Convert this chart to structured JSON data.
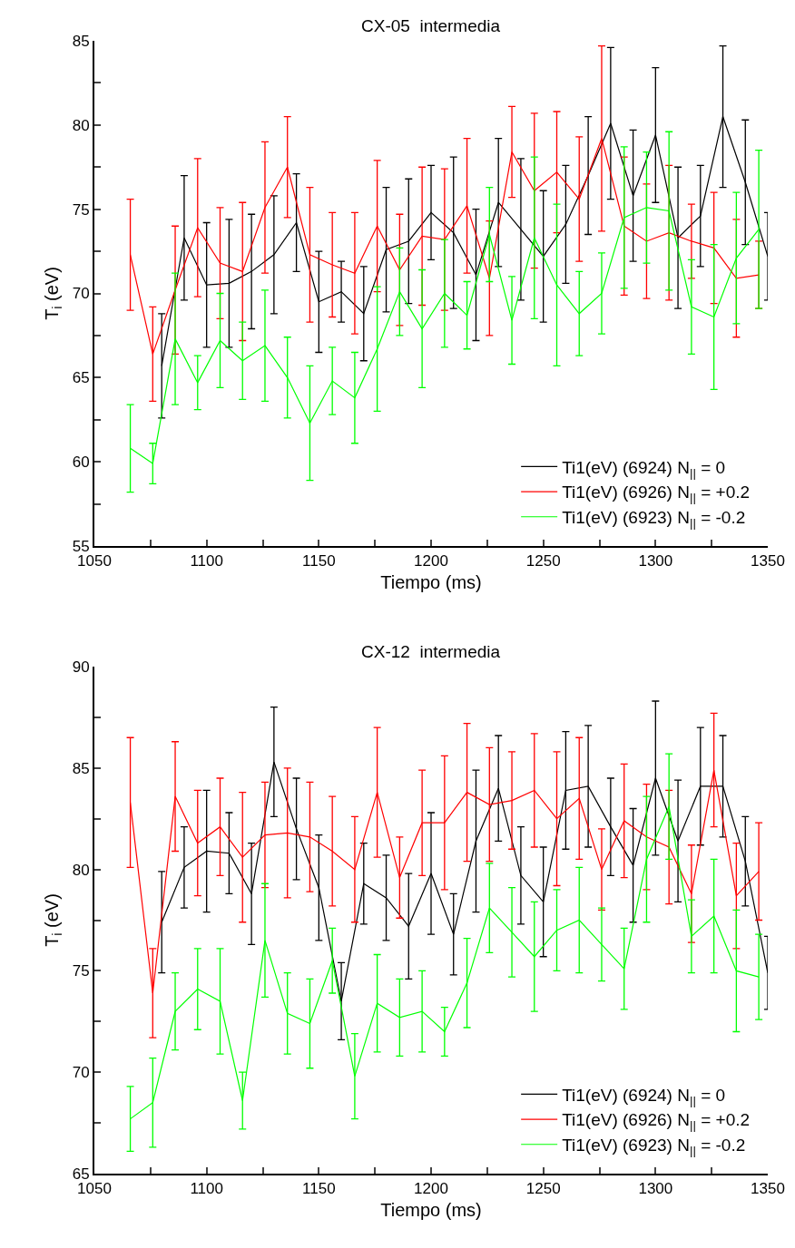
{
  "chart_data": [
    {
      "type": "line",
      "title": "CX-05  intermedia",
      "xlabel": "Tiempo (ms)",
      "ylabel": "T$_{i}$ (eV)",
      "legend": "bottom right",
      "xlim": [
        1050,
        1350
      ],
      "xticks": [
        1050,
        {
          "value": 1075,
          "label": null
        },
        1100,
        {
          "value": 1125,
          "label": null
        },
        1150,
        {
          "value": 1175,
          "label": null
        },
        1200,
        {
          "value": 1225,
          "label": null
        },
        1250,
        {
          "value": 1275,
          "label": null
        },
        1300,
        {
          "value": 1325,
          "label": null
        },
        1350
      ],
      "ylim": [
        55,
        85
      ],
      "yticks": [
        55,
        {
          "value": 57.5,
          "label": null
        },
        60,
        {
          "value": 62.5,
          "label": null
        },
        65,
        {
          "value": 67.5,
          "label": null
        },
        70,
        {
          "value": 72.5,
          "label": null
        },
        75,
        {
          "value": 77.5,
          "label": null
        },
        80,
        {
          "value": 82.5,
          "label": null
        },
        85
      ],
      "series": [
        {
          "name": "Ti1(eV) (6924) N$_{||}$ = 0",
          "color": "#000000",
          "x": [
            1080,
            1090,
            1100,
            1110,
            1120,
            1130,
            1140,
            1150,
            1160,
            1170,
            1180,
            1190,
            1200,
            1210,
            1220,
            1230,
            1240,
            1250,
            1260,
            1270,
            1280,
            1290,
            1300,
            1310,
            1320,
            1330,
            1340,
            1350
          ],
          "values": [
            65.7,
            73.3,
            70.5,
            70.6,
            71.3,
            72.3,
            74.2,
            69.5,
            70.1,
            68.8,
            72.6,
            73.1,
            74.8,
            73.6,
            71.1,
            75.4,
            73.8,
            72.2,
            74.1,
            77.0,
            80.1,
            75.8,
            79.4,
            73.3,
            74.6,
            80.5,
            76.6,
            72.2
          ],
          "errors": [
            3.1,
            3.7,
            3.7,
            3.8,
            3.4,
            3.5,
            2.9,
            3.0,
            1.8,
            2.8,
            3.7,
            3.7,
            2.8,
            4.5,
            3.9,
            3.8,
            4.2,
            3.9,
            3.5,
            3.5,
            4.5,
            3.9,
            4.0,
            4.2,
            3.0,
            4.2,
            3.7,
            2.6
          ]
        },
        {
          "name": "Ti1(eV) (6926) N$_{||}$ = +0.2",
          "color": "#ff0000",
          "x": [
            1066,
            1076,
            1086,
            1096,
            1106,
            1116,
            1126,
            1136,
            1146,
            1156,
            1166,
            1176,
            1186,
            1196,
            1206,
            1216,
            1226,
            1236,
            1246,
            1256,
            1266,
            1276,
            1286,
            1296,
            1306,
            1316,
            1326,
            1336,
            1346
          ],
          "values": [
            72.3,
            66.4,
            70.2,
            73.9,
            71.8,
            71.3,
            75.1,
            77.5,
            72.3,
            71.7,
            71.2,
            74.0,
            71.4,
            73.4,
            73.2,
            75.2,
            70.9,
            78.4,
            76.1,
            77.2,
            75.6,
            79.2,
            74.0,
            73.1,
            73.6,
            73.1,
            72.7,
            70.9,
            71.1
          ],
          "errors": [
            3.3,
            2.8,
            3.8,
            4.1,
            3.3,
            4.1,
            3.9,
            3.0,
            4.0,
            3.1,
            3.6,
            3.9,
            3.3,
            4.1,
            4.2,
            4.0,
            3.4,
            2.7,
            4.6,
            3.6,
            3.7,
            5.5,
            4.1,
            3.4,
            4.0,
            2.2,
            3.3,
            3.5,
            2.0
          ]
        },
        {
          "name": "Ti1(eV) (6923) N$_{||}$ = -0.2",
          "color": "#00ff00",
          "x": [
            1066,
            1076,
            1086,
            1096,
            1106,
            1116,
            1126,
            1136,
            1146,
            1156,
            1166,
            1176,
            1186,
            1196,
            1206,
            1216,
            1226,
            1236,
            1246,
            1256,
            1266,
            1276,
            1286,
            1296,
            1306,
            1316,
            1326,
            1336,
            1346
          ],
          "values": [
            60.8,
            59.9,
            67.3,
            64.7,
            67.2,
            66.0,
            66.9,
            65.0,
            62.3,
            64.8,
            63.8,
            66.7,
            70.1,
            67.9,
            70.0,
            68.7,
            73.5,
            68.4,
            73.3,
            70.5,
            68.8,
            70.0,
            74.5,
            75.1,
            74.9,
            69.2,
            68.6,
            72.1,
            73.8
          ],
          "errors": [
            2.6,
            1.2,
            3.9,
            1.6,
            2.8,
            2.3,
            3.3,
            2.4,
            3.4,
            2.0,
            2.7,
            3.7,
            2.6,
            3.5,
            3.2,
            2.0,
            2.8,
            2.6,
            4.8,
            4.8,
            2.5,
            2.4,
            4.2,
            3.3,
            4.7,
            2.8,
            4.3,
            3.9,
            4.7
          ]
        }
      ]
    },
    {
      "type": "line",
      "title": "CX-12  intermedia",
      "xlabel": "Tiempo (ms)",
      "ylabel": "T$_{i}$ (eV)",
      "legend": "bottom right",
      "xlim": [
        1050,
        1350
      ],
      "xticks": [
        1050,
        {
          "value": 1075,
          "label": null
        },
        1100,
        {
          "value": 1125,
          "label": null
        },
        1150,
        {
          "value": 1175,
          "label": null
        },
        1200,
        {
          "value": 1225,
          "label": null
        },
        1250,
        {
          "value": 1275,
          "label": null
        },
        1300,
        {
          "value": 1325,
          "label": null
        },
        1350
      ],
      "ylim": [
        65,
        90
      ],
      "yticks": [
        65,
        {
          "value": 67.5,
          "label": null
        },
        70,
        {
          "value": 72.5,
          "label": null
        },
        75,
        {
          "value": 77.5,
          "label": null
        },
        80,
        {
          "value": 82.5,
          "label": null
        },
        85,
        {
          "value": 87.5,
          "label": null
        },
        90
      ],
      "series": [
        {
          "name": "Ti1(eV) (6924) N$_{||}$ = 0",
          "color": "#000000",
          "x": [
            1080,
            1090,
            1100,
            1110,
            1120,
            1130,
            1140,
            1150,
            1160,
            1170,
            1180,
            1190,
            1200,
            1210,
            1220,
            1230,
            1240,
            1250,
            1260,
            1270,
            1280,
            1290,
            1300,
            1310,
            1320,
            1330,
            1340,
            1350
          ],
          "values": [
            77.4,
            80.1,
            80.9,
            80.8,
            78.8,
            85.3,
            82.0,
            79.1,
            73.5,
            79.3,
            78.6,
            77.2,
            79.8,
            76.8,
            81.4,
            84.0,
            79.7,
            78.4,
            83.9,
            84.1,
            82.1,
            80.2,
            84.5,
            81.4,
            84.1,
            84.1,
            80.4,
            74.9
          ],
          "errors": [
            2.5,
            2.0,
            3.0,
            2.0,
            2.5,
            2.7,
            2.5,
            2.6,
            1.9,
            2.0,
            2.1,
            2.6,
            3.0,
            2.0,
            3.5,
            2.6,
            2.4,
            2.7,
            2.9,
            3.0,
            2.4,
            2.8,
            3.8,
            3.0,
            2.9,
            2.5,
            2.2,
            1.8
          ]
        },
        {
          "name": "Ti1(eV) (6926) N$_{||}$ = +0.2",
          "color": "#ff0000",
          "x": [
            1066,
            1076,
            1086,
            1096,
            1106,
            1116,
            1126,
            1136,
            1146,
            1156,
            1166,
            1176,
            1186,
            1196,
            1206,
            1216,
            1226,
            1236,
            1246,
            1256,
            1266,
            1276,
            1286,
            1296,
            1306,
            1316,
            1326,
            1336,
            1346
          ],
          "values": [
            83.3,
            73.9,
            83.6,
            81.3,
            82.1,
            80.6,
            81.7,
            81.8,
            81.6,
            80.9,
            80.0,
            83.8,
            79.6,
            82.3,
            82.3,
            83.8,
            83.2,
            83.4,
            83.9,
            82.5,
            83.5,
            80.0,
            82.4,
            81.6,
            81.1,
            78.8,
            84.9,
            78.7,
            79.9
          ],
          "errors": [
            3.2,
            2.2,
            2.7,
            2.6,
            2.4,
            3.2,
            2.6,
            3.2,
            2.7,
            2.7,
            2.6,
            3.2,
            2.0,
            2.6,
            3.3,
            3.4,
            2.8,
            2.4,
            2.8,
            3.3,
            3.0,
            2.0,
            2.8,
            2.6,
            2.8,
            2.4,
            2.8,
            2.6,
            2.4
          ]
        },
        {
          "name": "Ti1(eV) (6923) N$_{||}$ = -0.2",
          "color": "#00ff00",
          "x": [
            1066,
            1076,
            1086,
            1096,
            1106,
            1116,
            1126,
            1136,
            1146,
            1156,
            1166,
            1176,
            1186,
            1196,
            1206,
            1216,
            1226,
            1236,
            1246,
            1256,
            1266,
            1276,
            1286,
            1296,
            1306,
            1316,
            1326,
            1336,
            1346
          ],
          "values": [
            67.7,
            68.5,
            73.0,
            74.1,
            73.5,
            68.6,
            76.5,
            72.9,
            72.4,
            75.5,
            69.8,
            73.4,
            72.7,
            73.0,
            72.0,
            74.4,
            78.1,
            76.9,
            75.7,
            77.0,
            77.5,
            76.3,
            75.1,
            80.5,
            83.1,
            76.7,
            77.7,
            75.0,
            74.7
          ],
          "errors": [
            1.6,
            2.2,
            1.9,
            2.0,
            2.6,
            1.4,
            2.8,
            2.0,
            2.2,
            1.6,
            2.1,
            2.4,
            1.9,
            2.0,
            1.2,
            2.2,
            2.2,
            2.2,
            2.7,
            2.0,
            2.6,
            1.8,
            2.0,
            3.1,
            2.6,
            1.8,
            2.8,
            3.0,
            2.1
          ]
        }
      ]
    }
  ]
}
